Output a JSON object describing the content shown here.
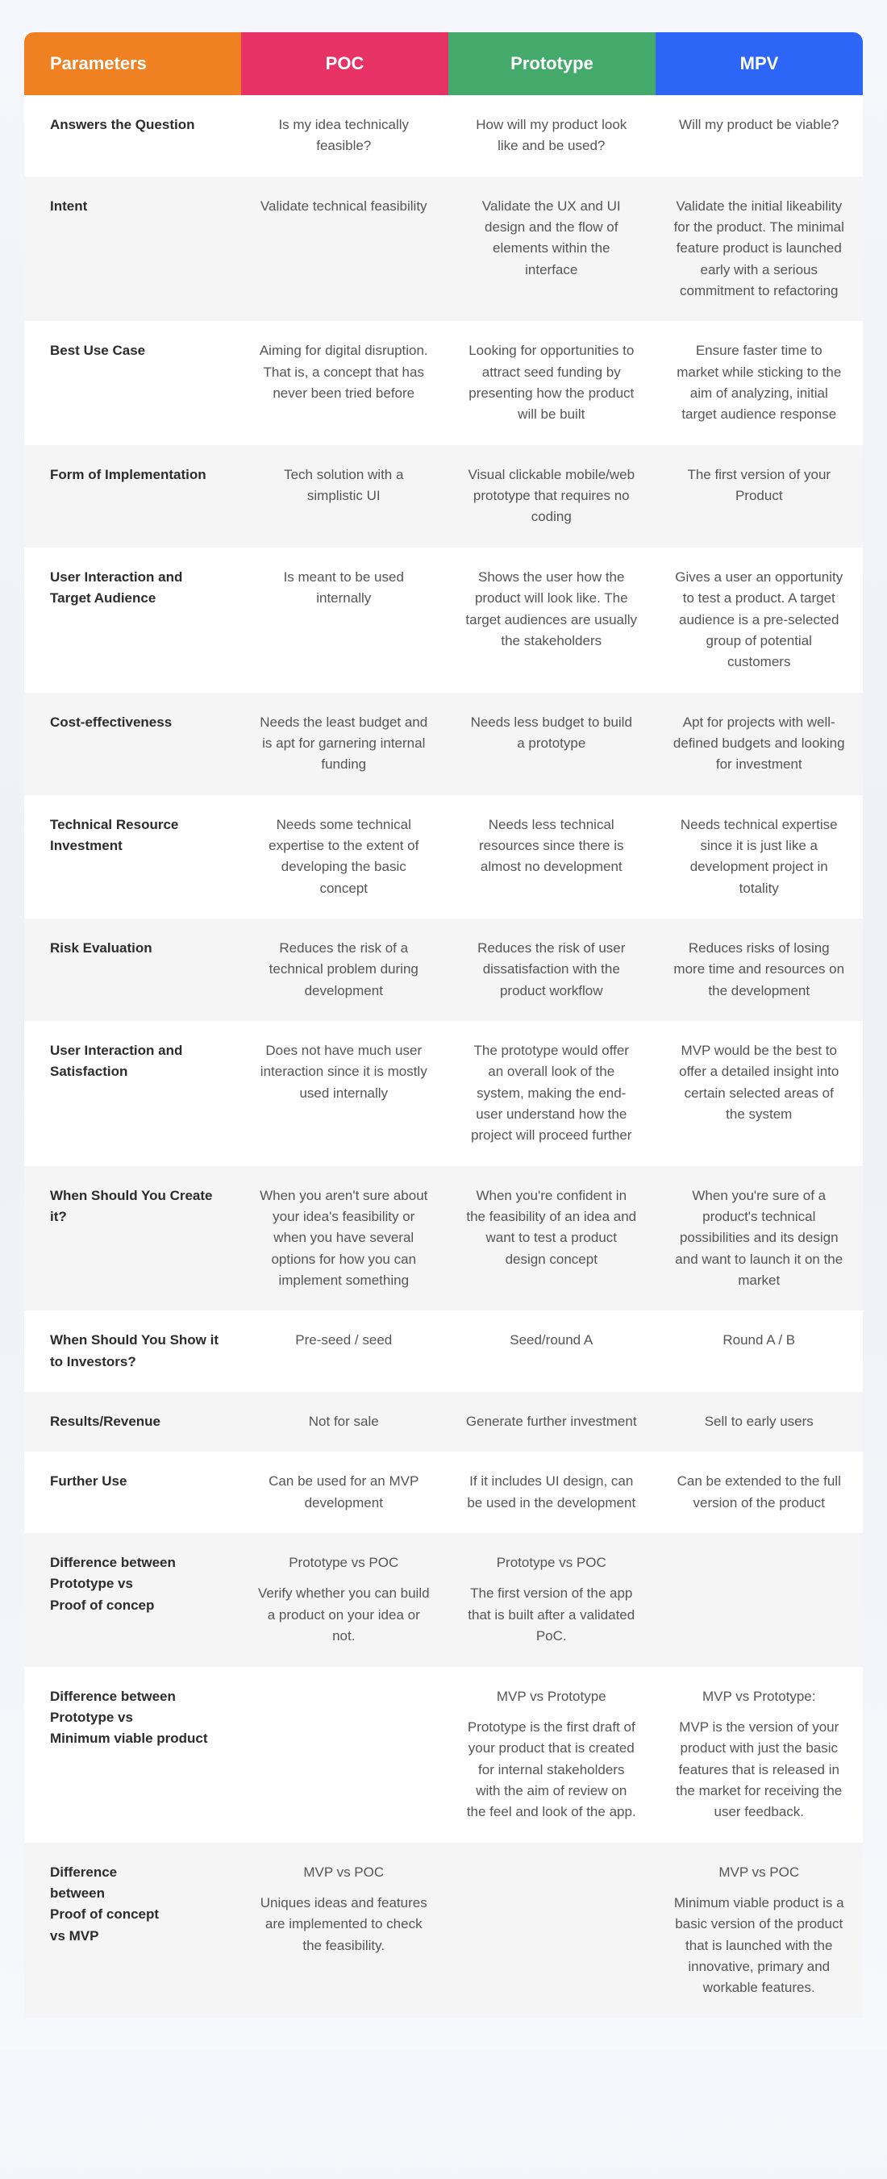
{
  "colors": {
    "col0": "#ef8123",
    "col1": "#e73265",
    "col2": "#44aa6b",
    "col3": "#2d66f6"
  },
  "headers": [
    "Parameters",
    "POC",
    "Prototype",
    "MPV"
  ],
  "rows": [
    {
      "param": "Answers the Question",
      "poc": "Is my idea technically feasible?",
      "proto": "How will my product look like and be used?",
      "mvp": "Will my product be viable?"
    },
    {
      "param": "Intent",
      "poc": "Validate technical feasibility",
      "proto": "Validate the UX and UI design and the flow of elements within the interface",
      "mvp": "Validate the initial likeability for the product. The minimal feature product is launched early with a serious commitment to refactoring"
    },
    {
      "param": "Best Use Case",
      "poc": "Aiming for digital disruption. That is, a concept that has never been tried before",
      "proto": "Looking for opportunities to attract seed funding by presenting how the product will be built",
      "mvp": "Ensure faster time to market while sticking to the aim of analyzing, initial target audience response"
    },
    {
      "param": "Form of Implementation",
      "poc": "Tech solution with a simplistic UI",
      "proto": "Visual clickable mobile/web prototype that requires no coding",
      "mvp": "The first version of your Product"
    },
    {
      "param": "User Interaction and Target Audience",
      "poc": "Is meant to be used internally",
      "proto": "Shows the user how the product will look like. The target audiences are usually the stakeholders",
      "mvp": "Gives a user an opportunity to test a product. A target audience is a pre-selected group of potential customers"
    },
    {
      "param": "Cost-effectiveness",
      "poc": "Needs the least budget and is apt for garnering internal funding",
      "proto": "Needs less budget to build a prototype",
      "mvp": "Apt for projects with well-defined budgets and looking for investment"
    },
    {
      "param": "Technical Resource Investment",
      "poc": "Needs some technical expertise to the extent of developing the basic concept",
      "proto": "Needs less technical resources since there is almost no development",
      "mvp": "Needs technical expertise since it is just like a development project in totality"
    },
    {
      "param": "Risk Evaluation",
      "poc": "Reduces the risk of a technical problem during development",
      "proto": "Reduces the risk of user dissatisfaction with the product workflow",
      "mvp": "Reduces risks of losing more time and resources on the development"
    },
    {
      "param": "User Interaction and Satisfaction",
      "poc": "Does not have much user interaction since it is mostly used internally",
      "proto": "The prototype would offer an overall look of the system, making the end-user understand how the project will proceed further",
      "mvp": "MVP would be the best to offer a detailed insight into certain selected areas of the system"
    },
    {
      "param": "When Should You Create it?",
      "poc": "When you aren't sure about your idea's feasibility or when you have several options for how you can implement something",
      "proto": "When you're confident in the feasibility of an idea and want to test a product design concept",
      "mvp": "When you're sure of a product's technical possibilities and its design and want to launch it on the market"
    },
    {
      "param": "When Should You Show it to Investors?",
      "poc": "Pre-seed / seed",
      "proto": "Seed/round A",
      "mvp": "Round A / B"
    },
    {
      "param": "Results/Revenue",
      "poc": "Not for sale",
      "proto": "Generate further investment",
      "mvp": "Sell to early users"
    },
    {
      "param": "Further Use",
      "poc": "Can be used for an MVP development",
      "proto": "If it includes UI design, can be used in the development",
      "mvp": "Can be extended to the full version of the product"
    },
    {
      "param": "Difference between\nPrototype vs\nProof of concep",
      "poc_lines": [
        "Prototype vs POC",
        "Verify whether you can build a product on your idea or not."
      ],
      "proto_lines": [
        "Prototype vs POC",
        "The first version of the app that is built after a validated PoC."
      ],
      "mvp": ""
    },
    {
      "param": "Difference between\nPrototype vs\nMinimum viable product",
      "poc": "",
      "proto_lines": [
        "MVP vs Prototype",
        "Prototype is the first draft of your product that is created for internal stakeholders with the aim of review on the feel and look of the app."
      ],
      "mvp_lines": [
        "MVP vs Prototype:",
        "MVP is the version of your product with just the basic features that is released in the market for receiving the user feedback."
      ]
    },
    {
      "param": "Difference\nbetween\nProof of concept\nvs MVP",
      "poc_lines": [
        "MVP vs POC",
        "Uniques ideas and features are implemented to check the feasibility."
      ],
      "proto": "",
      "mvp_lines": [
        "MVP vs POC",
        "Minimum viable product is a basic version of the product that is launched with the innovative, primary and workable features."
      ]
    }
  ]
}
